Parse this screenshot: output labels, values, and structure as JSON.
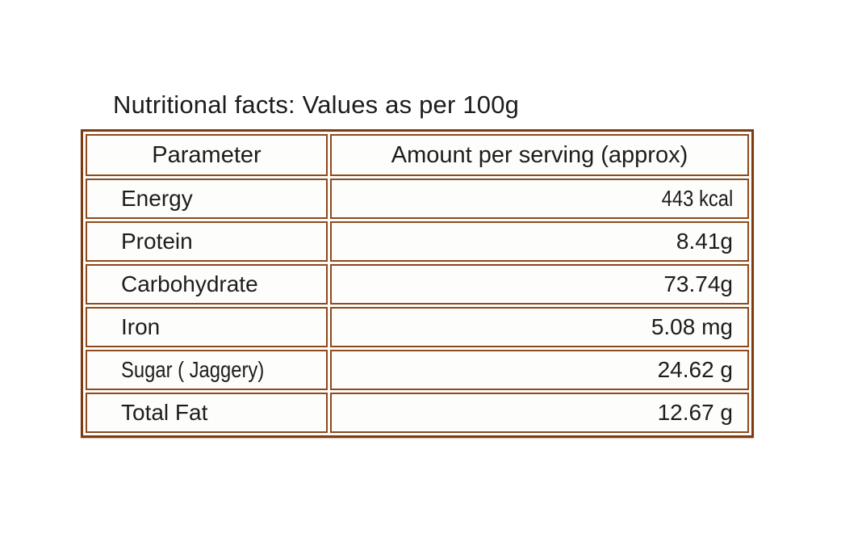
{
  "page": {
    "title": "Nutritional facts: Values as per 100g"
  },
  "table": {
    "headers": {
      "parameter": "Parameter",
      "amount": "Amount per serving (approx)"
    },
    "rows": [
      {
        "parameter": "Energy",
        "amount": "443 kcal"
      },
      {
        "parameter": "Protein",
        "amount": "8.41g"
      },
      {
        "parameter": "Carbohydrate",
        "amount": "73.74g"
      },
      {
        "parameter": "Iron",
        "amount": "5.08 mg"
      },
      {
        "parameter": "Sugar ( Jaggery)",
        "amount": "24.62 g"
      },
      {
        "parameter": "Total Fat",
        "amount": "12.67 g"
      }
    ]
  },
  "colors": {
    "border_outer": "#7b3c12",
    "border_inner": "#8d4a1d",
    "text": "#1d1d1d",
    "background": "#ffffff"
  }
}
